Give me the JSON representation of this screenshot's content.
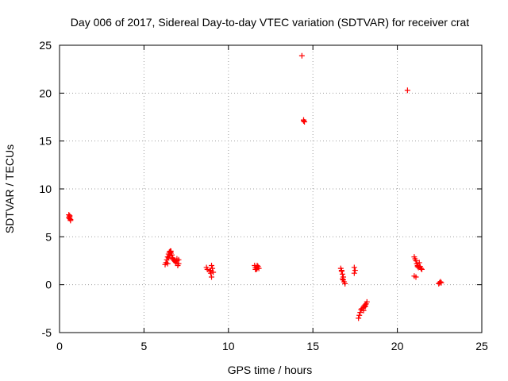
{
  "chart_data": {
    "type": "scatter",
    "title": "Day 006 of 2017, Sidereal Day-to-day VTEC variation (SDTVAR) for receiver crat",
    "xlabel": "GPS time / hours",
    "ylabel": "SDTVAR / TECUs",
    "xlim": [
      0,
      25
    ],
    "ylim": [
      -5,
      25
    ],
    "xticks": [
      0,
      5,
      10,
      15,
      20,
      25
    ],
    "yticks": [
      -5,
      0,
      5,
      10,
      15,
      20,
      25
    ],
    "grid": true,
    "marker": "+",
    "series": [
      {
        "name": "SDTVAR",
        "color": "#ff0000",
        "x": [
          0.55,
          0.6,
          0.6,
          0.65,
          0.6,
          0.55,
          0.65,
          6.25,
          6.3,
          6.35,
          6.4,
          6.45,
          6.5,
          6.55,
          6.6,
          6.65,
          6.7,
          6.75,
          6.8,
          6.85,
          6.9,
          6.95,
          7.0,
          7.05,
          6.4,
          6.5,
          6.6,
          6.7,
          6.55,
          6.45,
          6.95,
          7.05,
          8.7,
          8.75,
          8.9,
          8.95,
          9.0,
          9.05,
          9.0,
          9.1,
          8.95,
          11.55,
          11.6,
          11.65,
          11.7,
          11.75,
          11.8,
          11.6,
          11.7,
          14.35,
          14.45,
          14.5,
          14.45,
          16.65,
          16.7,
          16.75,
          16.8,
          16.75,
          16.85,
          16.8,
          16.9,
          16.7,
          17.45,
          17.5,
          17.45,
          17.7,
          17.75,
          17.8,
          17.85,
          17.9,
          18.0,
          18.05,
          18.1,
          18.15,
          18.2,
          18.1,
          18.0,
          20.6,
          21.0,
          21.05,
          21.1,
          21.15,
          21.2,
          21.25,
          21.3,
          21.35,
          21.4,
          21.45,
          21.0,
          21.1,
          21.2,
          22.45,
          22.5,
          22.55,
          22.6
        ],
        "y": [
          7.3,
          7.1,
          6.9,
          6.8,
          7.2,
          7.0,
          6.7,
          2.1,
          2.3,
          2.6,
          2.9,
          3.2,
          3.4,
          3.5,
          3.3,
          3.1,
          2.8,
          2.6,
          2.5,
          2.4,
          2.3,
          2.5,
          2.0,
          2.6,
          2.2,
          3.0,
          3.5,
          2.7,
          3.4,
          2.8,
          2.7,
          2.2,
          1.8,
          1.6,
          1.4,
          1.2,
          2.0,
          1.7,
          0.8,
          1.3,
          1.5,
          2.0,
          1.8,
          1.6,
          1.7,
          1.9,
          1.7,
          1.6,
          2.0,
          23.9,
          17.2,
          17.0,
          17.1,
          1.7,
          1.4,
          1.1,
          0.8,
          0.6,
          0.3,
          0.5,
          0.1,
          1.5,
          1.8,
          1.5,
          1.2,
          -3.5,
          -3.2,
          -2.9,
          -2.6,
          -2.5,
          -2.4,
          -2.2,
          -2.1,
          -2.0,
          -1.8,
          -2.3,
          -2.7,
          20.3,
          2.9,
          2.7,
          2.5,
          2.2,
          2.0,
          1.8,
          2.3,
          1.9,
          1.7,
          1.6,
          0.9,
          0.8,
          1.9,
          0.1,
          0.2,
          0.3,
          0.2
        ]
      }
    ]
  }
}
